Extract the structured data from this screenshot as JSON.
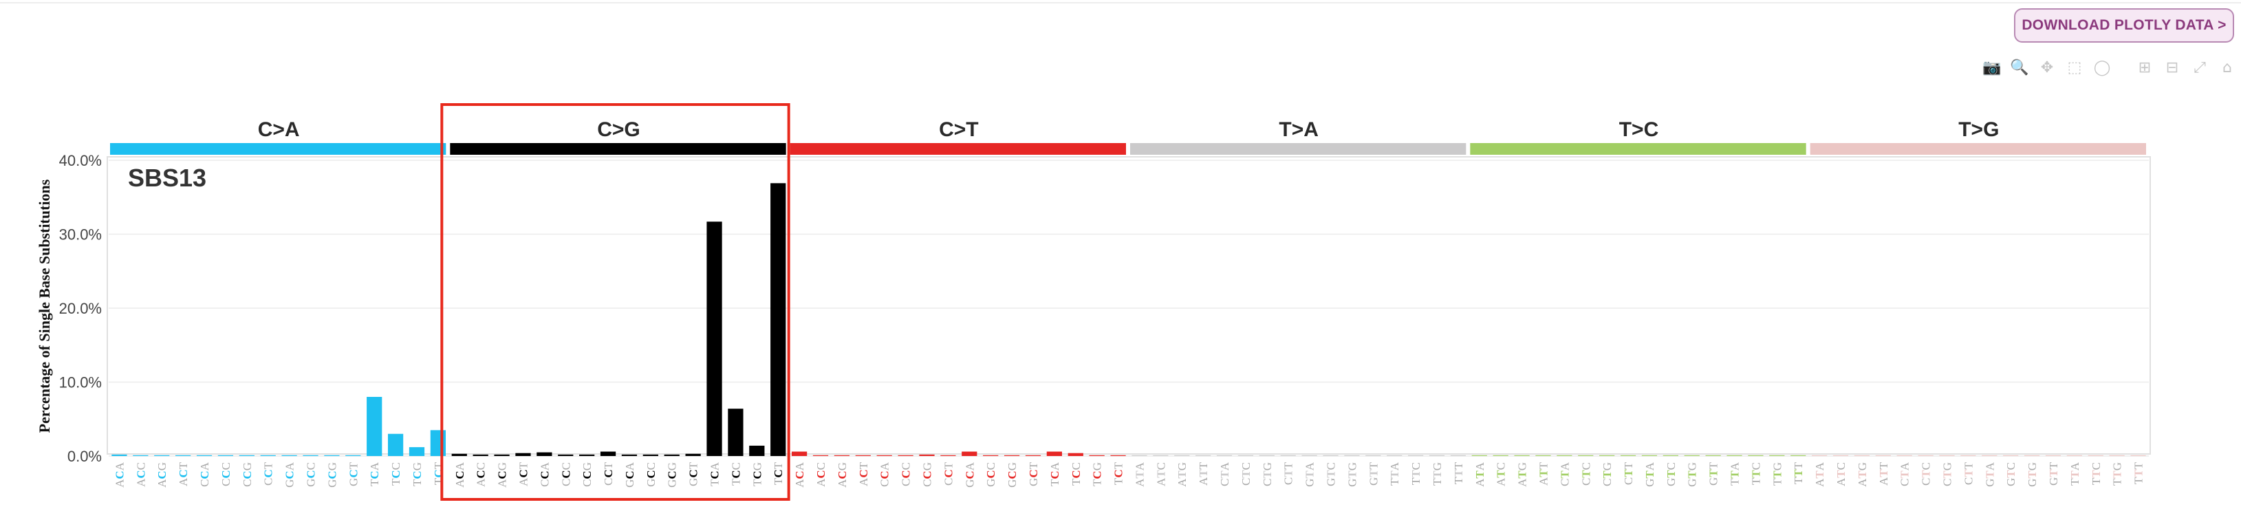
{
  "toolbar": {
    "download_label": "DOWNLOAD PLOTLY DATA >",
    "icons": [
      "camera-icon",
      "zoom-icon",
      "pan-icon",
      "box-select-icon",
      "lasso-icon",
      "zoom-in-icon",
      "zoom-out-icon",
      "autoscale-icon",
      "home-icon"
    ]
  },
  "chart_data": {
    "type": "bar",
    "title": "SBS13",
    "ylabel": "Percentage of Single Base Substitutions",
    "ylim": [
      0,
      40
    ],
    "yticks": [
      0,
      10,
      20,
      30,
      40
    ],
    "ytick_labels": [
      "0.0%",
      "10.0%",
      "20.0%",
      "30.0%",
      "40.0%"
    ],
    "grid": true,
    "highlight_group": "C>G",
    "highlight_color": "#e8291c",
    "groups": [
      {
        "name": "C>A",
        "color": "#1ebff0",
        "categories": [
          "ACA",
          "ACC",
          "ACG",
          "ACT",
          "CCA",
          "CCC",
          "CCG",
          "CCT",
          "GCA",
          "GCC",
          "GCG",
          "GCT",
          "TCA",
          "TCC",
          "TCG",
          "TCT"
        ],
        "values": [
          0.2,
          0.05,
          0.05,
          0.05,
          0.05,
          0.05,
          0.05,
          0.05,
          0.05,
          0.05,
          0.05,
          0.05,
          8.0,
          3.0,
          1.2,
          3.5
        ]
      },
      {
        "name": "C>G",
        "color": "#000000",
        "categories": [
          "ACA",
          "ACC",
          "ACG",
          "ACT",
          "CCA",
          "CCC",
          "CCG",
          "CCT",
          "GCA",
          "GCC",
          "GCG",
          "GCT",
          "TCA",
          "TCC",
          "TCG",
          "TCT"
        ],
        "values": [
          0.3,
          0.2,
          0.2,
          0.4,
          0.5,
          0.2,
          0.2,
          0.6,
          0.2,
          0.2,
          0.2,
          0.3,
          31.7,
          6.4,
          1.4,
          36.9
        ]
      },
      {
        "name": "C>T",
        "color": "#e62725",
        "categories": [
          "ACA",
          "ACC",
          "ACG",
          "ACT",
          "CCA",
          "CCC",
          "CCG",
          "CCT",
          "GCA",
          "GCC",
          "GCG",
          "GCT",
          "TCA",
          "TCC",
          "TCG",
          "TCT"
        ],
        "values": [
          0.6,
          0.1,
          0.1,
          0.1,
          0.1,
          0.1,
          0.2,
          0.1,
          0.6,
          0.1,
          0.1,
          0.1,
          0.6,
          0.4,
          0.1,
          0.1
        ]
      },
      {
        "name": "T>A",
        "color": "#cbcacb",
        "categories": [
          "ATA",
          "ATC",
          "ATG",
          "ATT",
          "CTA",
          "CTC",
          "CTG",
          "CTT",
          "GTA",
          "GTC",
          "GTG",
          "GTT",
          "TTA",
          "TTC",
          "TTG",
          "TTT"
        ],
        "values": [
          0.05,
          0.05,
          0.05,
          0.05,
          0.05,
          0.05,
          0.05,
          0.05,
          0.05,
          0.05,
          0.05,
          0.05,
          0.05,
          0.05,
          0.05,
          0.05
        ]
      },
      {
        "name": "T>C",
        "color": "#a1ce63",
        "categories": [
          "ATA",
          "ATC",
          "ATG",
          "ATT",
          "CTA",
          "CTC",
          "CTG",
          "CTT",
          "GTA",
          "GTC",
          "GTG",
          "GTT",
          "TTA",
          "TTC",
          "TTG",
          "TTT"
        ],
        "values": [
          0.1,
          0.05,
          0.05,
          0.05,
          0.05,
          0.05,
          0.05,
          0.05,
          0.05,
          0.05,
          0.05,
          0.05,
          0.05,
          0.05,
          0.05,
          0.05
        ]
      },
      {
        "name": "T>G",
        "color": "#ebc6c4",
        "categories": [
          "ATA",
          "ATC",
          "ATG",
          "ATT",
          "CTA",
          "CTC",
          "CTG",
          "CTT",
          "GTA",
          "GTC",
          "GTG",
          "GTT",
          "TTA",
          "TTC",
          "TTG",
          "TTT"
        ],
        "values": [
          0.05,
          0.05,
          0.05,
          0.05,
          0.05,
          0.05,
          0.05,
          0.05,
          0.05,
          0.05,
          0.05,
          0.05,
          0.05,
          0.05,
          0.05,
          0.05
        ]
      }
    ]
  }
}
